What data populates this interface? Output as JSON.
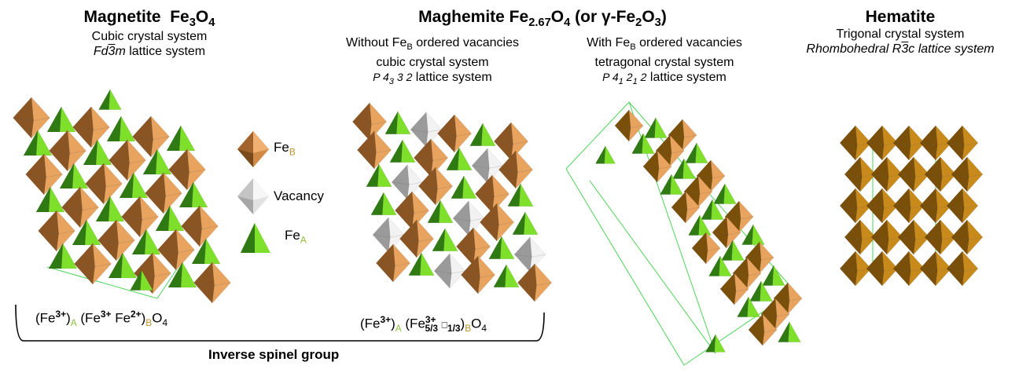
{
  "magnetite": {
    "name": "Magnetite",
    "formula_main": "Fe",
    "formula_sub1": "3",
    "formula_o": "O",
    "formula_sub2": "4",
    "line1": "Cubic crystal system",
    "line2_pre": "Fd",
    "line2_bar": "3",
    "line2_m": "m",
    "line2_post": " lattice system"
  },
  "maghemite": {
    "name": "Maghemite Fe",
    "name_sub": "2.67",
    "name_o": "O",
    "name_o_sub": "4",
    "name_paren": " (or γ-Fe",
    "name_paren_sub": "2",
    "name_paren_o": "O",
    "name_paren_o_sub": "3",
    "name_close": ")",
    "left": {
      "line1_pre": "Without Fe",
      "line1_sub": "B",
      "line1_post": " ordered vacancies",
      "line2": "cubic crystal system",
      "line3_p": "P 4",
      "line3_sub": "3",
      "line3_rest": " 3 2",
      "line3_post": " lattice system"
    },
    "right": {
      "line1_pre": "With Fe",
      "line1_sub": "B",
      "line1_post": " ordered vacancies",
      "line2": "tetragonal crystal system",
      "line3_p": "P 4",
      "line3_sub1": "1",
      "line3_mid": " 2",
      "line3_sub2": "1",
      "line3_rest": " 2",
      "line3_post": " lattice system"
    }
  },
  "hematite": {
    "name": "Hematite",
    "line1": "Trigonal crystal system",
    "line2_pre": "Rhombohedral R",
    "line2_bar": "3",
    "line2_post": "c lattice system"
  },
  "legend": {
    "feb_main": "Fe",
    "feb_sub": "B",
    "vacancy": "Vacancy",
    "fea_main": "Fe",
    "fea_sub": "A"
  },
  "formulas": {
    "magnetite": {
      "p1": "(Fe",
      "p1_sup": "3+",
      "p2": ")",
      "p2_sub": "A",
      "p3": " (Fe",
      "p3_sup": "3+",
      "p4": " Fe",
      "p4_sup": "2+",
      "p5": ")",
      "p5_sub": "B",
      "p6": "O",
      "p6_sub": "4"
    },
    "maghemite": {
      "p1": "(Fe",
      "p1_sup": "3+",
      "p2": ")",
      "p2_sub": "A",
      "p3": " (Fe",
      "p3_sup": "3+",
      "p3_sub": "5/3",
      "box": "□",
      "box_sub": "1/3",
      "p5": ")",
      "p5_sub": "B",
      "p6": "O",
      "p6_sub": "4"
    }
  },
  "group_label": "Inverse spinel group",
  "colors": {
    "fe_b_light": "#e8a35e",
    "fe_b_dark": "#8a5523",
    "fe_a_light": "#7ee02a",
    "fe_a_dark": "#2f7a12",
    "vacancy_light": "#f2f2f2",
    "vacancy_dark": "#9a9a9a",
    "hematite_light": "#c98a1c",
    "hematite_dark": "#7a4f0a",
    "cell_line": "#4ed45a",
    "label_green": "#8dbf3a",
    "label_gold": "#b8922e"
  }
}
